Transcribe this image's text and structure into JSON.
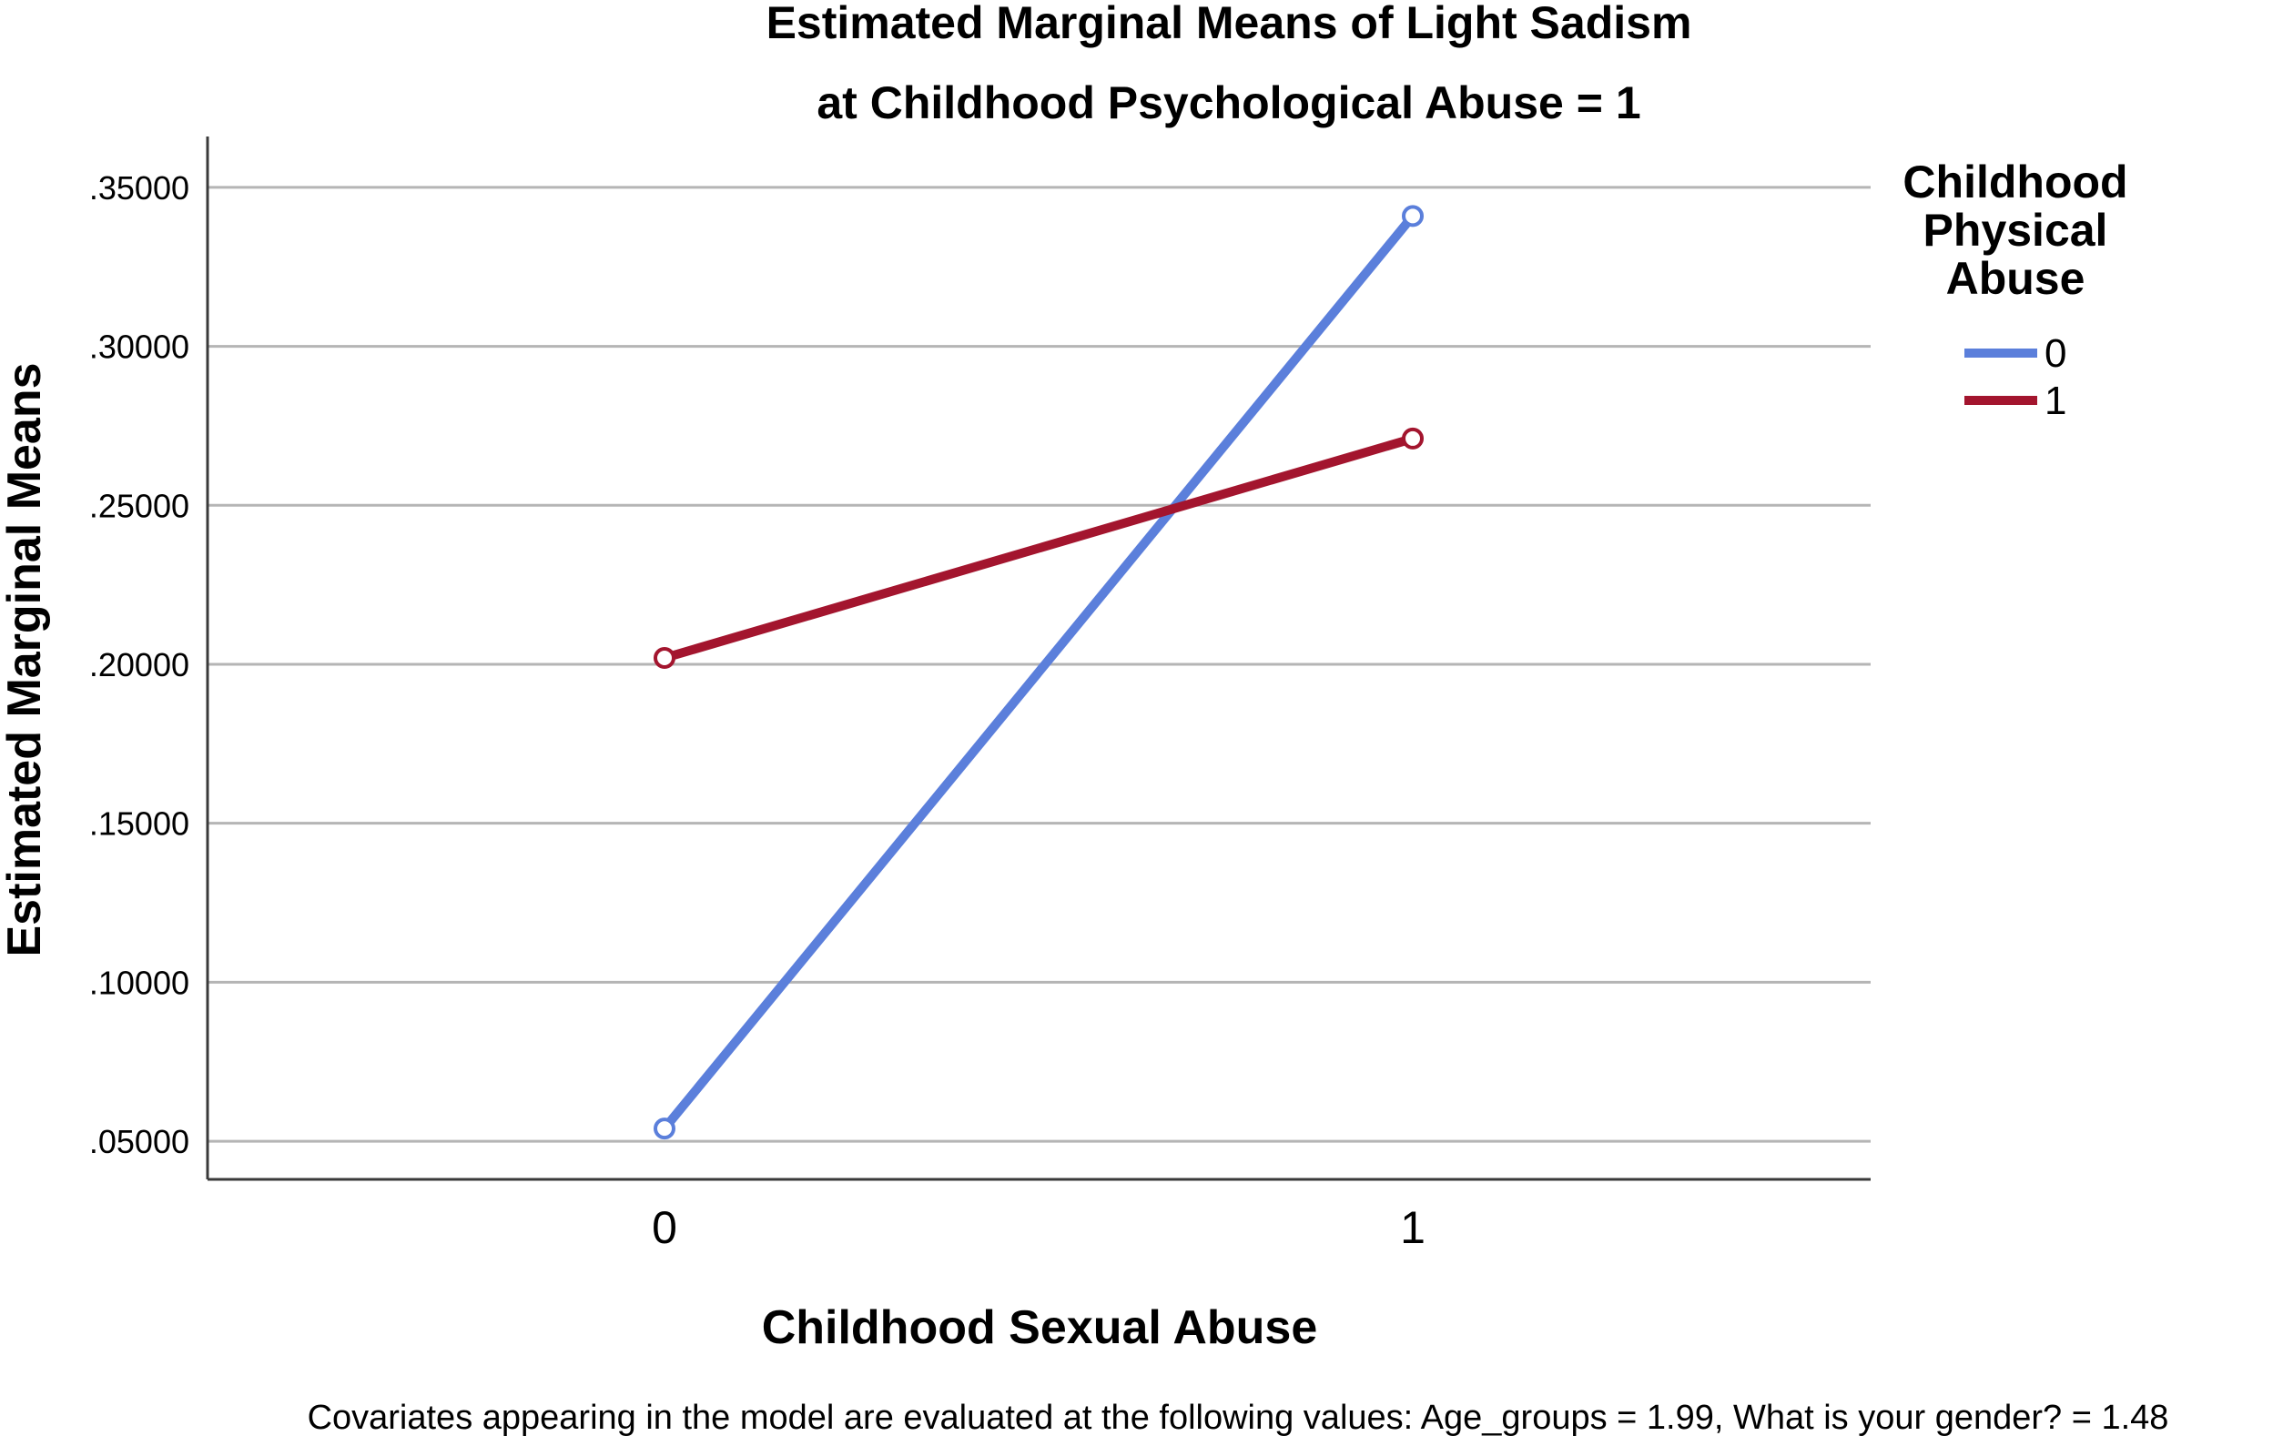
{
  "chart_data": {
    "type": "line",
    "title": "Estimated Marginal Means of Light Sadism",
    "subtitle": "at Childhood Psychological Abuse = 1",
    "xlabel": "Childhood Sexual Abuse",
    "ylabel": "Estimated Marginal Means",
    "categories": [
      "0",
      "1"
    ],
    "ylim": [
      0.038,
      0.366
    ],
    "yticks": [
      0.05,
      0.1,
      0.15,
      0.2,
      0.25,
      0.3,
      0.35
    ],
    "ytick_labels": [
      ".05000",
      ".10000",
      ".15000",
      ".20000",
      ".25000",
      ".30000",
      ".35000"
    ],
    "grid": true,
    "legend": {
      "title_lines": [
        "Childhood",
        "Physical",
        "Abuse"
      ],
      "placement": "right"
    },
    "series": [
      {
        "name": "0",
        "color": "#5B7FDB",
        "values": [
          0.054,
          0.341
        ]
      },
      {
        "name": "1",
        "color": "#A3152E",
        "values": [
          0.202,
          0.271
        ]
      }
    ],
    "footnote": "Covariates appearing in the model are evaluated at the following values: Age_groups = 1.99, What is your gender? = 1.48"
  }
}
